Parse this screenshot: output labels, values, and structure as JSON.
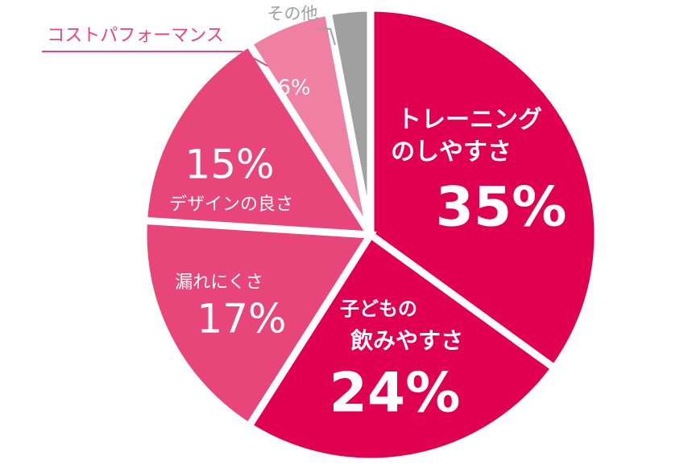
{
  "chart_data": {
    "type": "pie",
    "categories": [
      [
        "トレーニング",
        "のしやすさ"
      ],
      [
        "子どもの",
        "飲みやすさ"
      ],
      [
        "漏れにくさ"
      ],
      [
        "デザインの良さ"
      ],
      [
        "コストパフォーマンス"
      ],
      [
        "その他"
      ]
    ],
    "values": [
      35,
      24,
      17,
      15,
      6,
      3
    ],
    "value_labels": [
      "35%",
      "24%",
      "17%",
      "15%",
      "6%",
      null
    ],
    "colors": [
      "#e0004f",
      "#e0004f",
      "#e8457b",
      "#e8457b",
      "#ef7fa3",
      "#a0a0a0"
    ]
  }
}
